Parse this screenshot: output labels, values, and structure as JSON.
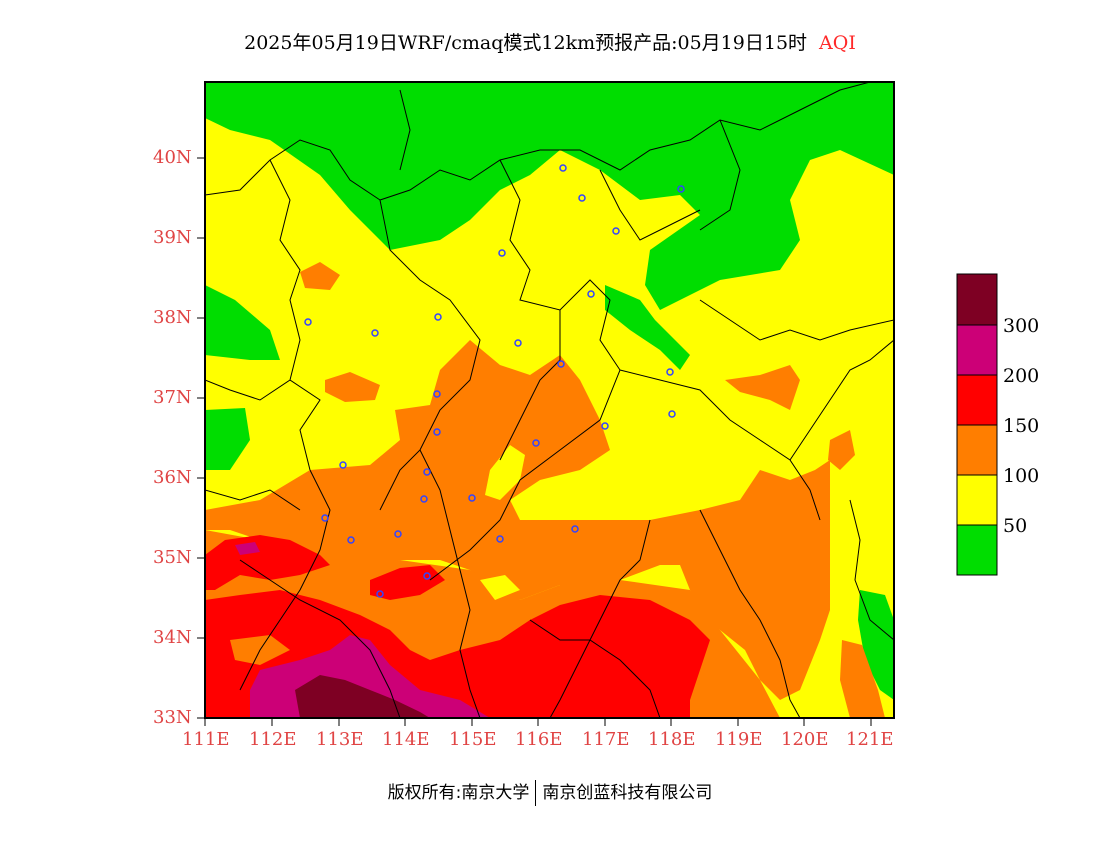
{
  "title": {
    "main": "2025年05月19日WRF/cmaq模式12km预报产品:05月19日15时",
    "variable": "AQI"
  },
  "map": {
    "lon_range": [
      111,
      121.4
    ],
    "lat_range": [
      33,
      40.95
    ],
    "lat_ticks": [
      "33N",
      "34N",
      "35N",
      "36N",
      "37N",
      "38N",
      "39N",
      "40N"
    ],
    "lon_ticks": [
      "111E",
      "112E",
      "113E",
      "114E",
      "115E",
      "116E",
      "117E",
      "118E",
      "119E",
      "120E",
      "121E"
    ]
  },
  "legend": {
    "labels": [
      "300",
      "200",
      "150",
      "100",
      "50"
    ],
    "colors": {
      "good": "#00dd00",
      "moderate": "#ffff00",
      "usg": "#ff7e00",
      "unhealthy": "#ff0000",
      "very_unhealthy": "#cc0077",
      "hazardous": "#7e0023"
    }
  },
  "footer": {
    "left": "版权所有:南京大学",
    "right": "南京创蓝科技有限公司"
  }
}
